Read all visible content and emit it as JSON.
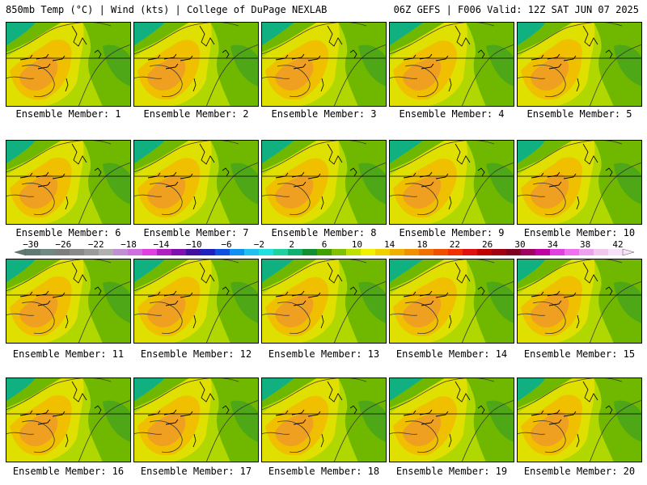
{
  "header": {
    "left": "850mb Temp (°C) | Wind (kts) | College of DuPage NEXLAB",
    "right": "06Z GEFS | F006 Valid: 12Z SAT JUN 07 2025"
  },
  "member_label_prefix": "Ensemble Member:",
  "members": [
    1,
    2,
    3,
    4,
    5,
    6,
    7,
    8,
    9,
    10,
    11,
    12,
    13,
    14,
    15,
    16,
    17,
    18,
    19,
    20
  ],
  "colorbar": {
    "tick_labels": [
      "−30",
      "−26",
      "−22",
      "−18",
      "−14",
      "−10",
      "−6",
      "−2",
      "2",
      "6",
      "10",
      "14",
      "18",
      "22",
      "26",
      "30",
      "34",
      "38",
      "42"
    ],
    "colors": [
      "#5f7a72",
      "#6f8a82",
      "#7d7d7d",
      "#8a8a8a",
      "#9a9a9a",
      "#b0b0b0",
      "#c090d0",
      "#d070e0",
      "#e040e0",
      "#b020c0",
      "#8010b0",
      "#4010a0",
      "#2020c0",
      "#1050e0",
      "#1090f0",
      "#20c0f0",
      "#20e0e0",
      "#20d0a0",
      "#10b070",
      "#109030",
      "#40a000",
      "#80c000",
      "#c0e000",
      "#f0f000",
      "#f0d000",
      "#f0b000",
      "#f09000",
      "#f07000",
      "#f05000",
      "#f03000",
      "#e01010",
      "#c00000",
      "#a00010",
      "#800020",
      "#a00060",
      "#c000a0",
      "#e040e0",
      "#f070f0",
      "#f0a0f0",
      "#f0c8f0",
      "#f8e0f8"
    ],
    "range": [
      -30,
      42
    ]
  },
  "field_colors": {
    "warm_core": "#f0a020",
    "warm": "#f0c000",
    "mild": "#e0e000",
    "cool": "#b0d800",
    "green": "#70b800",
    "dark_green": "#40a020",
    "teal": "#10b080",
    "contour": "#3a3a3a"
  }
}
